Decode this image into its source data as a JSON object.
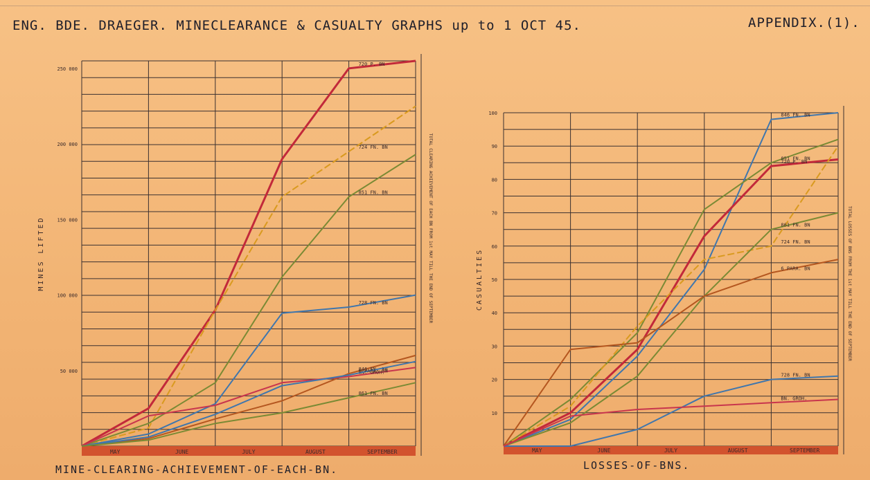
{
  "header": {
    "title": "ENG. BDE. DRAEGER. MINECLEARANCE & CASUALTY GRAPHS up to 1 OCT 45.",
    "appendix": "APPENDIX.(1)."
  },
  "colors": {
    "red": "#c2293a",
    "yellow": "#d99a1f",
    "olive": "#7a8a34",
    "blue": "#3f76ad",
    "brown": "#b4561f",
    "pink": "#c8354d",
    "band": "#d2532e"
  },
  "chart_data": [
    {
      "type": "line",
      "title": "MINE-CLEARING-ACHIEVEMENT-OF-EACH-BN.",
      "ylabel": "MINES LIFTED",
      "right_label": "TOTAL CLEARING ACHIEVEMENT OF EACH BN FROM 1st MAY TILL THE END OF SEPTEMBER",
      "x": [
        0,
        1,
        2,
        3,
        4,
        5
      ],
      "month_labels": [
        "MAY",
        "JUNE",
        "JULY",
        "AUGUST",
        "SEPTEMBER"
      ],
      "ytick_labels": [
        "50 000",
        "100 000",
        "150 000",
        "200 000",
        "250 000"
      ],
      "ytick_values": [
        50000,
        100000,
        150000,
        200000,
        250000
      ],
      "ylim": [
        0,
        255000
      ],
      "series": [
        {
          "name": "720 P. BN",
          "color": "red",
          "values": [
            0,
            25000,
            90000,
            190000,
            250000,
            255000
          ]
        },
        {
          "name": "724 FN. BN",
          "color": "yellow",
          "dashed": true,
          "values": [
            0,
            12000,
            90000,
            165000,
            195000,
            225000
          ]
        },
        {
          "name": "851 FN. BN",
          "color": "olive",
          "values": [
            0,
            15000,
            42000,
            112000,
            165000,
            193000
          ]
        },
        {
          "name": "728 FN. BN",
          "color": "blue",
          "values": [
            0,
            8000,
            28000,
            88000,
            92000,
            100000
          ]
        },
        {
          "name": "846 FN. BN",
          "color": "brown",
          "values": [
            0,
            5000,
            18000,
            30000,
            48000,
            60000
          ]
        },
        {
          "name": "BN. GROH.",
          "color": "pink",
          "values": [
            0,
            20000,
            27000,
            42000,
            46000,
            52000
          ]
        },
        {
          "name": "6 PARA. BN",
          "color": "blue",
          "values": [
            0,
            6000,
            21000,
            40000,
            47000,
            56000
          ]
        },
        {
          "name": "861 FN. BN",
          "color": "olive",
          "values": [
            0,
            4000,
            15000,
            22000,
            32000,
            42000
          ]
        }
      ]
    },
    {
      "type": "line",
      "title": "LOSSES-OF-BNS.",
      "ylabel": "CASUALTIES",
      "right_label": "TOTAL LOSSES OF BNS FROM THE 1st MAY TILL THE END OF SEPTEMBER",
      "x": [
        0,
        1,
        2,
        3,
        4,
        5
      ],
      "month_labels": [
        "MAY",
        "JUNE",
        "JULY",
        "AUGUST",
        "SEPTEMBER"
      ],
      "ytick_labels": [
        "10",
        "20",
        "30",
        "40",
        "50",
        "60",
        "70",
        "80",
        "90",
        "100"
      ],
      "ytick_values": [
        10,
        20,
        30,
        40,
        50,
        60,
        70,
        80,
        90,
        100
      ],
      "ylim": [
        0,
        100
      ],
      "series": [
        {
          "name": "846 FN. BN",
          "color": "blue",
          "values": [
            0,
            8,
            27,
            53,
            98,
            100
          ]
        },
        {
          "name": "851 FN. BN",
          "color": "olive",
          "values": [
            0,
            14,
            34,
            71,
            85,
            92
          ]
        },
        {
          "name": "720 P. BN",
          "color": "red",
          "values": [
            0,
            10,
            29,
            63,
            84,
            86
          ]
        },
        {
          "name": "724 FN. BN",
          "color": "yellow",
          "dashed": true,
          "values": [
            0,
            12,
            36,
            56,
            60,
            90
          ]
        },
        {
          "name": "861 FN. BN",
          "color": "olive",
          "values": [
            0,
            7,
            21,
            45,
            65,
            70
          ]
        },
        {
          "name": "6 PARA. BN",
          "color": "brown",
          "values": [
            0,
            29,
            31,
            45,
            52,
            56
          ]
        },
        {
          "name": "728 FN. BN",
          "color": "blue",
          "values": [
            0,
            0,
            5,
            15,
            20,
            21
          ]
        },
        {
          "name": "BN. GROH.",
          "color": "pink",
          "values": [
            0,
            9,
            11,
            12,
            13,
            14
          ]
        }
      ]
    }
  ]
}
